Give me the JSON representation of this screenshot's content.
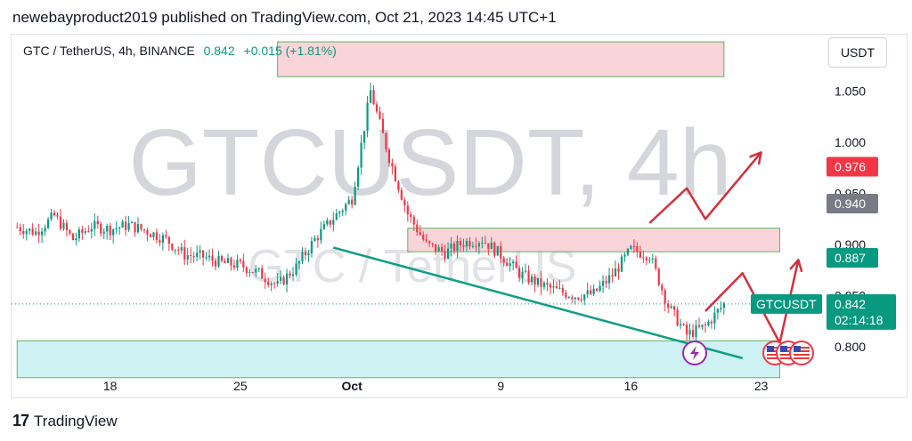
{
  "header": {
    "published_text": "newebayproduct2019 published on TradingView.com, Oct 21, 2023 14:45 UTC+1"
  },
  "legend": {
    "symbol": "GTC / TetherUS, 4h, BINANCE",
    "price": "0.842",
    "change": "+0.015 (+1.81%)"
  },
  "currency_button": "USDT",
  "watermark": {
    "big": "GTCUSDT, 4h",
    "small": "GTC / TetherUS"
  },
  "footer": {
    "brand": "TradingView",
    "mark": "17"
  },
  "chart_data": {
    "type": "line",
    "x_ticks": [
      "18",
      "25",
      "Oct",
      "9",
      "16",
      "23"
    ],
    "y_ticks": [
      "0.800",
      "0.850",
      "0.900",
      "0.950",
      "1.000",
      "1.050"
    ],
    "ylim": [
      0.775,
      1.105
    ],
    "xlim": [
      "Sep 13",
      "Oct 25"
    ],
    "price_series": {
      "x": [
        "Sep 13",
        "Sep 14",
        "Sep 15",
        "Sep 16",
        "Sep 17",
        "Sep 18",
        "Sep 19",
        "Sep 20",
        "Sep 21",
        "Sep 22",
        "Sep 23",
        "Sep 24",
        "Sep 25",
        "Sep 26",
        "Sep 27",
        "Sep 28",
        "Sep 29",
        "Sep 30",
        "Oct 1",
        "Oct 2",
        "Oct 3",
        "Oct 4",
        "Oct 5",
        "Oct 6",
        "Oct 7",
        "Oct 8",
        "Oct 9",
        "Oct 10",
        "Oct 11",
        "Oct 12",
        "Oct 13",
        "Oct 14",
        "Oct 15",
        "Oct 16",
        "Oct 17",
        "Oct 18",
        "Oct 19",
        "Oct 20",
        "Oct 21"
      ],
      "values": [
        0.917,
        0.912,
        0.928,
        0.905,
        0.918,
        0.915,
        0.919,
        0.913,
        0.905,
        0.89,
        0.888,
        0.882,
        0.88,
        0.872,
        0.86,
        0.878,
        0.905,
        0.926,
        0.945,
        1.05,
        0.985,
        0.93,
        0.9,
        0.892,
        0.902,
        0.905,
        0.89,
        0.872,
        0.862,
        0.855,
        0.85,
        0.852,
        0.87,
        0.895,
        0.89,
        0.84,
        0.812,
        0.82,
        0.842
      ]
    },
    "levels": [
      {
        "label": "0.976",
        "value": 0.976,
        "color": "#f23645"
      },
      {
        "label": "0.940",
        "value": 0.94,
        "color": "#787b86"
      },
      {
        "label": "0.887",
        "value": 0.887,
        "color": "#089981"
      }
    ],
    "current_price": {
      "symbol": "GTCUSDT",
      "price": "0.842",
      "countdown": "02:14:18",
      "value": 0.842,
      "color": "#089981"
    },
    "zones": [
      {
        "name": "resistance-top-zone",
        "x0": "Sep 27",
        "x1": "Oct 21",
        "y0": 1.064,
        "y1": 1.098,
        "fill": "#f9d0d4",
        "stroke": "#4caf50"
      },
      {
        "name": "resistance-mid-zone",
        "x0": "Oct 4",
        "x1": "Oct 24",
        "y0": 0.893,
        "y1": 0.916,
        "fill": "#f9d0d4",
        "stroke": "#4caf50"
      },
      {
        "name": "support-zone",
        "x0": "Sep 13",
        "x1": "Oct 24",
        "y0": 0.77,
        "y1": 0.806,
        "fill": "#c9f1f2",
        "stroke": "#4caf50"
      }
    ],
    "trendline": {
      "x0": "Sep 30",
      "y0": 0.897,
      "x1": "Oct 22",
      "y1": 0.789,
      "color": "#109e86"
    },
    "projection_paths": [
      {
        "name": "projection-upper",
        "points": [
          [
            "Oct 17",
            0.921
          ],
          [
            "Oct 19",
            0.955
          ],
          [
            "Oct 20",
            0.925
          ],
          [
            "Oct 23",
            0.99
          ]
        ],
        "color": "#d32f3c"
      },
      {
        "name": "projection-lower",
        "points": [
          [
            "Oct 20",
            0.835
          ],
          [
            "Oct 22",
            0.872
          ],
          [
            "Oct 24",
            0.804
          ],
          [
            "Oct 25",
            0.885
          ]
        ],
        "color": "#d32f3c"
      }
    ]
  }
}
